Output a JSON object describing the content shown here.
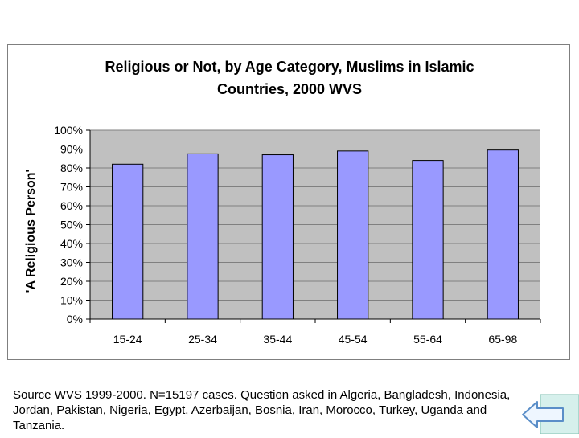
{
  "chart_data": {
    "type": "bar",
    "title_lines": [
      "Religious or Not, by Age Category, Muslims in Islamic",
      "Countries, 2000 WVS"
    ],
    "ylabel": "'A Religious Person'",
    "xlabel": "",
    "categories": [
      "15-24",
      "25-34",
      "35-44",
      "45-54",
      "55-64",
      "65-98"
    ],
    "values": [
      82,
      87.5,
      87,
      89,
      84,
      89.5
    ],
    "ylim": [
      0,
      100
    ],
    "yticks": [
      0,
      10,
      20,
      30,
      40,
      50,
      60,
      70,
      80,
      90,
      100
    ],
    "ytick_labels": [
      "0%",
      "10%",
      "20%",
      "30%",
      "40%",
      "50%",
      "60%",
      "70%",
      "80%",
      "90%",
      "100%"
    ],
    "grid": true,
    "legend": "none",
    "colors": {
      "bar": "#9999ff",
      "plot_background": "#c0c0c0",
      "gridline": "#808080"
    }
  },
  "source_note": "Source WVS 1999-2000. N=15197 cases. Question asked in Algeria, Bangladesh, Indonesia, Jordan, Pakistan, Nigeria, Egypt, Azerbaijan, Bosnia, Iran, Morocco, Turkey, Uganda and Tanzania.",
  "nav": {
    "back_icon": "arrow-left-icon"
  }
}
